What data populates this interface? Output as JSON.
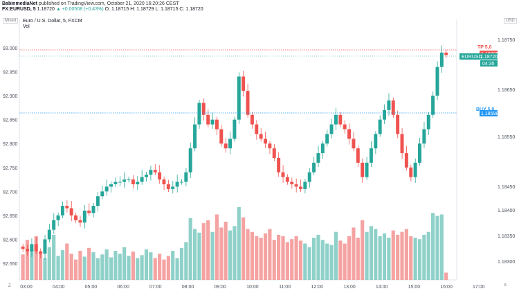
{
  "header": {
    "author": "BabinmediaNet",
    "published": "published on TradingView.com, October 21, 2020 16:20:26 CEST",
    "symbol": "FX:EURUSD, 5",
    "price": "1.18720",
    "change": "▲ +0.00508 (+0.43%)",
    "ohlc": "O: 1.18715 H: 1.18729 L: 1.18715 C: 1.18720"
  },
  "legend": {
    "title": "Euro / U.S. Dollar, 5, FXCM",
    "vol": "Vol"
  },
  "controls": {
    "mixed": "Mixed",
    "usd": "USD",
    "zoom": "Z",
    "auto": "A"
  },
  "left_axis": [
    "93.000",
    "92.950",
    "92.900",
    "92.850",
    "92.800",
    "92.750",
    "92.700",
    "92.650",
    "92.600",
    "92.550"
  ],
  "right_axis": [
    "1.18750",
    "1.18650",
    "1.18550",
    "1.18450",
    "1.18400",
    "1.18350",
    "1.18300"
  ],
  "x_axis": [
    "03:00",
    "04:00",
    "05:00",
    "06:00",
    "07:00",
    "08:00",
    "09:00",
    "10:00",
    "11:00",
    "12:00",
    "13:00",
    "14:00",
    "15:00",
    "16:00",
    "17:00"
  ],
  "orders": {
    "tp_label": "TP 5,0",
    "tp_price": "1.18725",
    "buy_label": "BUY 5,0",
    "buy_price": "1.18598",
    "current_symbol": "EURUSD",
    "current_price": "1.18720",
    "countdown": "04:35"
  },
  "colors": {
    "up": "#26a69a",
    "down": "#ef5350",
    "vol_up": "#8fd1c9",
    "vol_down": "#f4a3a2",
    "tp": "#ef5350",
    "buy": "#2196f3"
  },
  "chart_data": {
    "type": "candlestick",
    "title": "Euro / U.S. Dollar, 5, FXCM",
    "candles_left_axis_values": {
      "open": [
        92.585,
        92.58,
        92.575,
        92.59,
        92.575,
        92.57,
        92.6,
        92.62,
        92.64,
        92.65,
        92.67,
        92.665,
        92.65,
        92.64,
        92.635,
        92.66,
        92.655,
        92.67,
        92.69,
        92.7,
        92.71,
        92.715,
        92.72,
        92.72,
        92.725,
        92.725,
        92.715,
        92.72,
        92.73,
        92.735,
        92.745,
        92.74,
        92.725,
        92.715,
        92.705,
        92.71,
        92.72,
        92.72,
        92.74,
        92.79,
        92.84,
        92.885,
        92.86,
        92.84,
        92.85,
        92.83,
        92.8,
        92.79,
        92.81,
        92.85,
        92.94,
        92.91,
        92.86,
        92.84,
        92.82,
        92.81,
        92.8,
        92.79,
        92.77,
        92.74,
        92.73,
        92.72,
        92.715,
        92.71,
        92.705,
        92.72,
        92.74,
        92.76,
        92.78,
        92.8,
        92.82,
        92.84,
        92.86,
        92.84,
        92.83,
        92.81,
        92.79,
        92.76,
        92.73,
        92.76,
        92.79,
        92.82,
        92.85,
        92.87,
        92.89,
        92.86,
        92.82,
        92.78,
        92.75,
        92.73,
        92.76,
        92.8,
        92.83,
        92.86,
        92.9,
        92.96,
        92.99
      ],
      "close": [
        92.58,
        92.575,
        92.59,
        92.575,
        92.57,
        92.6,
        92.62,
        92.64,
        92.65,
        92.67,
        92.665,
        92.65,
        92.64,
        92.635,
        92.66,
        92.655,
        92.67,
        92.69,
        92.7,
        92.71,
        92.715,
        92.72,
        92.72,
        92.725,
        92.725,
        92.715,
        92.72,
        92.73,
        92.735,
        92.745,
        92.74,
        92.725,
        92.715,
        92.705,
        92.71,
        92.72,
        92.72,
        92.74,
        92.79,
        92.84,
        92.885,
        92.86,
        92.84,
        92.85,
        92.83,
        92.8,
        92.79,
        92.81,
        92.85,
        92.94,
        92.91,
        92.86,
        92.84,
        92.82,
        92.81,
        92.8,
        92.79,
        92.77,
        92.74,
        92.73,
        92.72,
        92.715,
        92.71,
        92.705,
        92.72,
        92.74,
        92.76,
        92.78,
        92.8,
        92.82,
        92.84,
        92.86,
        92.84,
        92.83,
        92.81,
        92.79,
        92.76,
        92.73,
        92.76,
        92.79,
        92.82,
        92.85,
        92.87,
        92.89,
        92.86,
        92.82,
        92.78,
        92.75,
        92.73,
        92.76,
        92.8,
        92.83,
        92.86,
        92.9,
        92.96,
        92.99,
        92.985
      ]
    },
    "volume_relative": [
      0.35,
      0.55,
      0.42,
      0.6,
      0.38,
      0.3,
      0.45,
      0.62,
      0.33,
      0.41,
      0.5,
      0.36,
      0.28,
      0.4,
      0.32,
      0.44,
      0.38,
      0.3,
      0.35,
      0.42,
      0.31,
      0.4,
      0.36,
      0.45,
      0.33,
      0.39,
      0.3,
      0.34,
      0.42,
      0.38,
      0.3,
      0.36,
      0.28,
      0.33,
      0.4,
      0.3,
      0.44,
      0.52,
      0.85,
      0.7,
      0.65,
      0.78,
      0.82,
      0.66,
      0.9,
      0.72,
      0.8,
      0.68,
      0.74,
      1.0,
      0.86,
      0.7,
      0.66,
      0.6,
      0.58,
      0.64,
      0.7,
      0.55,
      0.62,
      0.6,
      0.52,
      0.56,
      0.6,
      0.54,
      0.5,
      0.45,
      0.58,
      0.62,
      0.55,
      0.5,
      0.48,
      0.66,
      0.54,
      0.5,
      0.6,
      0.72,
      0.58,
      0.82,
      0.66,
      0.74,
      0.7,
      0.6,
      0.64,
      0.58,
      0.68,
      0.62,
      0.66,
      0.7,
      0.6,
      0.58,
      0.56,
      0.62,
      0.66,
      0.92,
      0.88,
      0.9,
      0.1
    ]
  }
}
